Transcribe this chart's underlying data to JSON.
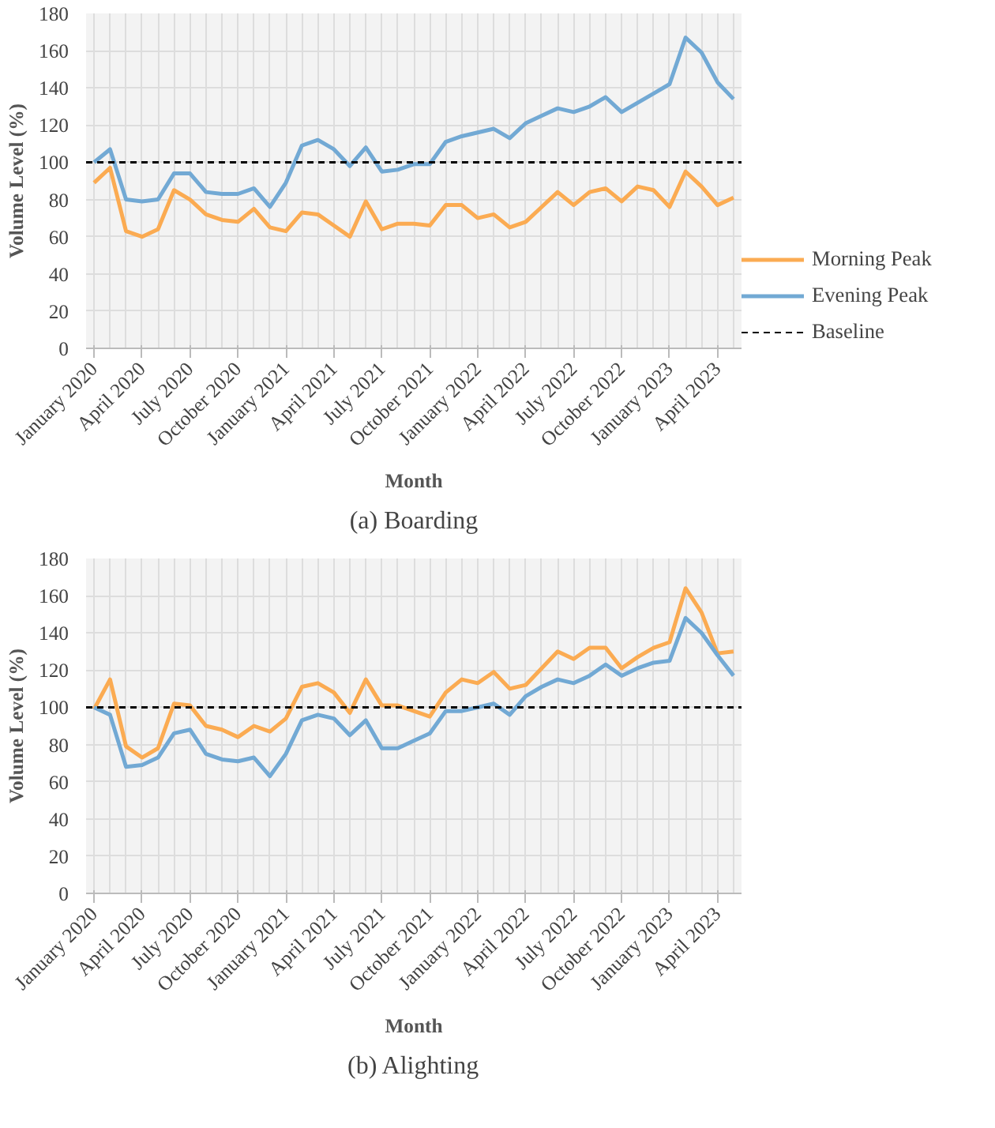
{
  "chart_data": [
    {
      "type": "line",
      "title": "(a) Boarding",
      "xlabel": "Month",
      "ylabel": "Volume Level (%)",
      "categories": [
        "January 2020",
        null,
        null,
        "April 2020",
        null,
        null,
        "July 2020",
        null,
        null,
        "October 2020",
        null,
        null,
        "January 2021",
        null,
        null,
        "April 2021",
        null,
        null,
        "July 2021",
        null,
        null,
        "October 2021",
        null,
        null,
        "January 2022",
        null,
        null,
        "April 2022",
        null,
        null,
        "July 2022",
        null,
        null,
        "October 2022",
        null,
        null,
        "January 2023",
        null,
        null,
        "April 2023",
        null
      ],
      "series": [
        {
          "name": "Morning Peak",
          "color": "#fbab52",
          "values": [
            89,
            97,
            63,
            60,
            64,
            85,
            80,
            72,
            69,
            68,
            75,
            65,
            63,
            73,
            72,
            66,
            60,
            79,
            64,
            67,
            67,
            66,
            77,
            77,
            70,
            72,
            65,
            68,
            76,
            84,
            77,
            84,
            86,
            79,
            87,
            85,
            76,
            95,
            87,
            77,
            81
          ]
        },
        {
          "name": "Evening Peak",
          "color": "#72a9d4",
          "values": [
            100,
            107,
            80,
            79,
            80,
            94,
            94,
            84,
            83,
            83,
            86,
            76,
            89,
            109,
            112,
            107,
            98,
            108,
            95,
            96,
            99,
            99,
            111,
            114,
            116,
            118,
            113,
            121,
            125,
            129,
            127,
            130,
            135,
            127,
            132,
            137,
            142,
            167,
            159,
            143,
            134
          ]
        }
      ],
      "ref_lines": [
        {
          "axis": "y",
          "value": 100,
          "label": "Baseline",
          "color": "#000000",
          "line_style": "dashed"
        }
      ],
      "ylim": [
        0,
        180
      ],
      "yticks": [
        0,
        20,
        40,
        60,
        80,
        100,
        120,
        140,
        160,
        180
      ],
      "grid": true,
      "legend": "right"
    },
    {
      "type": "line",
      "title": "(b) Alighting",
      "xlabel": "Month",
      "ylabel": "Volume Level (%)",
      "categories": [
        "January 2020",
        null,
        null,
        "April 2020",
        null,
        null,
        "July 2020",
        null,
        null,
        "October 2020",
        null,
        null,
        "January 2021",
        null,
        null,
        "April 2021",
        null,
        null,
        "July 2021",
        null,
        null,
        "October 2021",
        null,
        null,
        "January 2022",
        null,
        null,
        "April 2022",
        null,
        null,
        "July 2022",
        null,
        null,
        "October 2022",
        null,
        null,
        "January 2023",
        null,
        null,
        "April 2023",
        null
      ],
      "series": [
        {
          "color": "#fbab52",
          "values": [
            99,
            115,
            79,
            73,
            78,
            102,
            101,
            90,
            88,
            84,
            90,
            87,
            94,
            111,
            113,
            108,
            97,
            115,
            101,
            101,
            98,
            95,
            108,
            115,
            113,
            119,
            110,
            112,
            121,
            130,
            126,
            132,
            132,
            121,
            127,
            132,
            135,
            164,
            151,
            129,
            130
          ]
        },
        {
          "color": "#72a9d4",
          "values": [
            100,
            96,
            68,
            69,
            73,
            86,
            88,
            75,
            72,
            71,
            73,
            63,
            75,
            93,
            96,
            94,
            85,
            93,
            78,
            78,
            82,
            86,
            98,
            98,
            100,
            102,
            96,
            106,
            111,
            115,
            113,
            117,
            123,
            117,
            121,
            124,
            125,
            148,
            140,
            128,
            117
          ]
        }
      ],
      "ref_lines": [
        {
          "axis": "y",
          "value": 100,
          "color": "#000000",
          "line_style": "dashed"
        }
      ],
      "ylim": [
        0,
        180
      ],
      "yticks": [
        0,
        20,
        40,
        60,
        80,
        100,
        120,
        140,
        160,
        180
      ],
      "grid": true
    }
  ]
}
